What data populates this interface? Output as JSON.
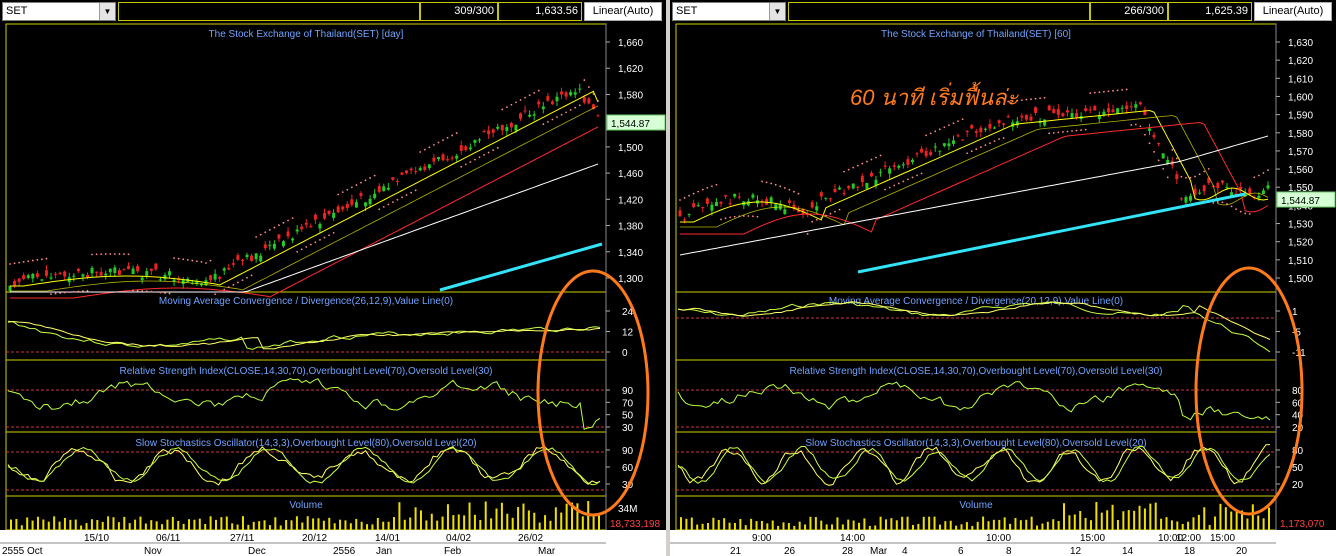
{
  "left": {
    "symbol": "SET",
    "count": "309/300",
    "price": "1,633.56",
    "scale": "Linear(Auto)",
    "main_title": "The Stock Exchange of Thailand(SET) [day]",
    "price_axis": [
      "1,660",
      "1,620",
      "1,580",
      "1,540",
      "1,500",
      "1,460",
      "1,420",
      "1,380",
      "1,340",
      "1,300"
    ],
    "last_price": "1,544.87",
    "macd_title": "Moving Average Convergence / Divergence(26,12,9),Value Line(0)",
    "macd_axis": [
      "24",
      "12",
      "0"
    ],
    "rsi_title": "Relative Strength Index(CLOSE,14,30,70),Overbought Level(70),Oversold Level(30)",
    "rsi_axis": [
      "90",
      "70",
      "50",
      "30"
    ],
    "sto_title": "Slow Stochastics Oscillator(14,3,3),Overbought Level(80),Oversold Level(20)",
    "sto_axis": [
      "90",
      "60",
      "30"
    ],
    "volume_title": "Volume",
    "volume_axis": "34M",
    "volume_last": "18,733,198",
    "date_row1": [
      "15/10",
      "06/11",
      "27/11",
      "20/12",
      "14/01",
      "04/02",
      "26/02"
    ],
    "date_row2": [
      "2555 Oct",
      "Nov",
      "Dec",
      "2556",
      "Jan",
      "Feb",
      "Mar"
    ]
  },
  "right": {
    "symbol": "SET",
    "count": "266/300",
    "price": "1,625.39",
    "scale": "Linear(Auto)",
    "main_title": "The Stock Exchange of Thailand(SET) [60]",
    "annotation": "60 นาที เริ่มฟื้นล่ะ",
    "price_axis": [
      "1,630",
      "1,620",
      "1,610",
      "1,600",
      "1,590",
      "1,580",
      "1,570",
      "1,560",
      "1,550",
      "1,540",
      "1,530",
      "1,520",
      "1,510",
      "1,500"
    ],
    "last_price": "1,544.87",
    "macd_title": "Moving Average Convergence / Divergence(20,12,9),Value Line(0)",
    "macd_axis": [
      "1",
      "-5",
      "-11"
    ],
    "rsi_title": "Relative Strength Index(CLOSE,14,30,70),Overbought Level(70),Oversold Level(30)",
    "rsi_axis": [
      "80",
      "60",
      "40",
      "20"
    ],
    "sto_title": "Slow Stochastics Oscillator(14,3,3),Overbought Level(80),Oversold Level(20)",
    "sto_axis": [
      "80",
      "50",
      "20"
    ],
    "volume_title": "Volume",
    "volume_last": "1,173,070",
    "date_row1": [
      "9:00",
      "14:00",
      "10:00",
      "15:00",
      "12:00",
      "10:00",
      "15:00"
    ],
    "date_row2": [
      "21",
      "26",
      "28",
      "Mar",
      "4",
      "6",
      "8",
      "12",
      "14",
      "18",
      "20"
    ]
  },
  "colors": {
    "panel_title": "#6fa3ff",
    "highlight_circle": "#ff7a1a",
    "annotation": "#ff7a1a",
    "ma_long": "#ffffff",
    "ma_fast": "#ffff00",
    "ma_mid": "#ff2a2a",
    "trend_line": "#33e3f7",
    "sar_dots": "#ff8a8a",
    "candle_up": "#22cc22",
    "candle_down": "#ee2222",
    "volume_bar": "#f0e000",
    "pane_border": "#d0d000",
    "level_line": "#cc3344",
    "price_badge": "#d6ffd6"
  }
}
